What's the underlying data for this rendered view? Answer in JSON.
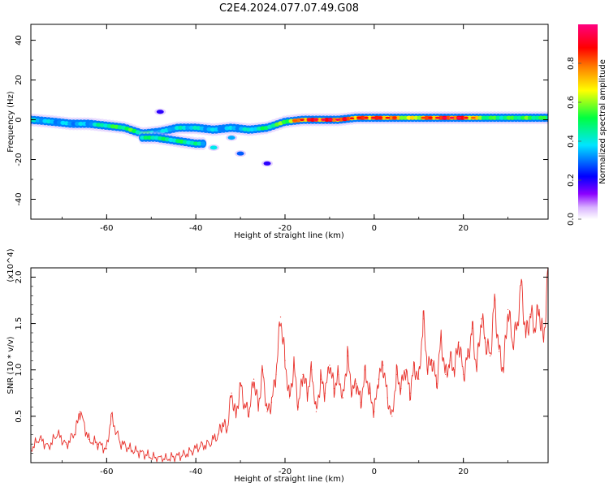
{
  "figure": {
    "title": "C2E4.2024.077.07.49.G08"
  },
  "chart_data": [
    {
      "type": "heatmap",
      "xlabel": "Height of straight line (km)",
      "ylabel": "Frequency (Hz)",
      "xlim": [
        -77,
        39
      ],
      "ylim": [
        -50,
        48
      ],
      "x_ticks": [
        -60,
        -40,
        -20,
        0,
        20
      ],
      "y_ticks": [
        -40,
        -20,
        0,
        20,
        40
      ],
      "grid": false,
      "colorbar": {
        "label": "Normalized spectral amplitude",
        "range": [
          0,
          1
        ],
        "ticks": [
          0.0,
          0.2,
          0.4,
          0.6,
          0.8
        ],
        "colormap": [
          "#8b00ff",
          "#0000ff",
          "#00e5ff",
          "#00ff40",
          "#ffff00",
          "#ff8000",
          "#ff0000",
          "#ff0080"
        ]
      },
      "ridge": {
        "x": [
          -77,
          -72,
          -68,
          -64,
          -60,
          -56,
          -52,
          -48,
          -44,
          -40,
          -36,
          -32,
          -28,
          -24,
          -20,
          -16,
          -12,
          -8,
          -4,
          0,
          4,
          8,
          12,
          16,
          20,
          24,
          28,
          32,
          36,
          39
        ],
        "freq": [
          0,
          -1,
          -2,
          -2,
          -3,
          -4,
          -7,
          -6,
          -4,
          -4,
          -5,
          -4,
          -5,
          -4,
          -1,
          0,
          0,
          0,
          1,
          1,
          1,
          1,
          1,
          1,
          1,
          1,
          1,
          1,
          1,
          1
        ],
        "amplitude": [
          0.35,
          0.3,
          0.3,
          0.3,
          0.45,
          0.5,
          0.45,
          0.3,
          0.35,
          0.35,
          0.3,
          0.3,
          0.35,
          0.45,
          0.55,
          0.85,
          0.9,
          0.9,
          0.8,
          0.85,
          0.8,
          0.6,
          0.8,
          0.9,
          0.9,
          0.55,
          0.45,
          0.5,
          0.5,
          0.45
        ]
      },
      "secondary_ridge": {
        "x": [
          -52,
          -49,
          -46,
          -43,
          -40,
          -38
        ],
        "freq": [
          -9,
          -9,
          -10,
          -11,
          -12,
          -12
        ],
        "amplitude": [
          0.4,
          0.45,
          0.4,
          0.45,
          0.4,
          0.3
        ]
      },
      "blobs": [
        {
          "x": -36,
          "freq": -14,
          "amplitude": 0.3
        },
        {
          "x": -30,
          "freq": -17,
          "amplitude": 0.2
        },
        {
          "x": -32,
          "freq": -9,
          "amplitude": 0.25
        },
        {
          "x": -24,
          "freq": -22,
          "amplitude": 0.1
        },
        {
          "x": -48,
          "freq": 4,
          "amplitude": 0.1
        }
      ]
    },
    {
      "type": "line",
      "xlabel": "Height of straight line (km)",
      "ylabel": "SNR (10 * v/v)",
      "y_multiplier": "(x10^4)",
      "xlim": [
        -77,
        39
      ],
      "ylim": [
        0,
        2.1
      ],
      "x_ticks": [
        -60,
        -40,
        -20,
        0,
        20
      ],
      "y_ticks": [
        0.5,
        1.0,
        1.5,
        2.0
      ],
      "grid": false,
      "series": [
        {
          "color": "#e8302a",
          "x": [
            -77,
            -75,
            -73,
            -71,
            -69,
            -67,
            -66,
            -64,
            -62,
            -60,
            -59,
            -57,
            -55,
            -53,
            -51,
            -49,
            -47,
            -45,
            -43,
            -41,
            -39,
            -37,
            -35,
            -34,
            -33,
            -32,
            -31,
            -30,
            -29,
            -28,
            -27,
            -26,
            -25,
            -24,
            -23,
            -22,
            -21,
            -20,
            -19,
            -18,
            -17,
            -16,
            -15,
            -14,
            -13,
            -12,
            -11,
            -10,
            -9,
            -8,
            -7,
            -6,
            -5,
            -4,
            -3,
            -2,
            -1,
            0,
            1,
            2,
            3,
            4,
            5,
            6,
            7,
            8,
            9,
            10,
            11,
            12,
            13,
            14,
            15,
            16,
            17,
            18,
            19,
            20,
            21,
            22,
            23,
            24,
            25,
            26,
            27,
            28,
            29,
            30,
            31,
            32,
            33,
            34,
            35,
            36,
            37,
            38,
            39
          ],
          "values": [
            0.15,
            0.25,
            0.18,
            0.3,
            0.2,
            0.32,
            0.55,
            0.25,
            0.2,
            0.15,
            0.5,
            0.22,
            0.15,
            0.12,
            0.08,
            0.05,
            0.04,
            0.06,
            0.08,
            0.12,
            0.18,
            0.2,
            0.3,
            0.42,
            0.35,
            0.75,
            0.5,
            0.85,
            0.6,
            0.55,
            0.9,
            0.6,
            1.0,
            0.55,
            0.65,
            0.95,
            1.57,
            1.1,
            0.7,
            1.05,
            0.6,
            0.95,
            0.75,
            1.0,
            0.55,
            0.9,
            0.75,
            1.05,
            0.8,
            0.95,
            0.7,
            1.15,
            0.75,
            0.85,
            0.65,
            1.0,
            0.75,
            0.55,
            0.9,
            1.05,
            0.7,
            0.5,
            0.95,
            0.8,
            1.0,
            0.75,
            1.05,
            0.9,
            1.55,
            1.0,
            1.1,
            0.85,
            1.35,
            0.95,
            1.1,
            1.0,
            1.3,
            0.95,
            1.15,
            1.45,
            1.0,
            1.55,
            1.3,
            1.15,
            1.75,
            1.2,
            1.0,
            1.65,
            1.3,
            1.45,
            1.95,
            1.35,
            1.6,
            1.45,
            1.65,
            1.3,
            2.1
          ]
        }
      ]
    }
  ]
}
